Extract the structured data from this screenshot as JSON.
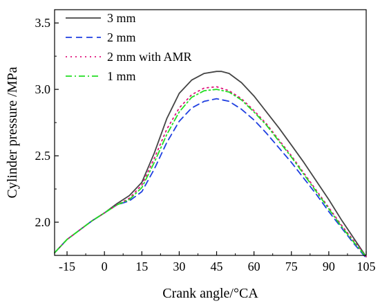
{
  "chart_data": {
    "type": "line",
    "xlabel": "Crank angle/°CA",
    "ylabel": "Cylinder pressure /MPa",
    "xlim": [
      -20,
      105
    ],
    "ylim": [
      1.75,
      3.6
    ],
    "xticks": [
      -15,
      0,
      15,
      30,
      45,
      60,
      75,
      90,
      105
    ],
    "xtick_labels": [
      "-15",
      "0",
      "15",
      "30",
      "45",
      "60",
      "75",
      "90",
      "105"
    ],
    "yticks": [
      2.0,
      2.5,
      3.0,
      3.5
    ],
    "ytick_labels": [
      "2.0",
      "2.5",
      "3.0",
      "3.5"
    ],
    "legend_position": "top-left",
    "grid": false,
    "series": [
      {
        "name": "3 mm",
        "color": "#444444",
        "dash": "solid",
        "x": [
          -20,
          -15,
          -10,
          -5,
          0,
          5,
          10,
          15,
          20,
          25,
          30,
          35,
          40,
          45,
          47,
          50,
          55,
          60,
          65,
          70,
          75,
          80,
          85,
          90,
          95,
          100,
          105
        ],
        "y": [
          1.77,
          1.87,
          1.94,
          2.01,
          2.07,
          2.14,
          2.2,
          2.3,
          2.52,
          2.78,
          2.97,
          3.07,
          3.12,
          3.135,
          3.135,
          3.12,
          3.05,
          2.95,
          2.83,
          2.71,
          2.58,
          2.45,
          2.31,
          2.17,
          2.02,
          1.88,
          1.74
        ]
      },
      {
        "name": "2 mm",
        "color": "#1f3fe0",
        "dash": "dashed",
        "x": [
          -20,
          -15,
          -10,
          -5,
          0,
          5,
          10,
          15,
          20,
          25,
          30,
          35,
          40,
          45,
          50,
          55,
          60,
          65,
          70,
          75,
          80,
          85,
          90,
          95,
          100,
          105
        ],
        "y": [
          1.77,
          1.87,
          1.94,
          2.01,
          2.07,
          2.13,
          2.16,
          2.23,
          2.4,
          2.6,
          2.76,
          2.86,
          2.91,
          2.93,
          2.91,
          2.85,
          2.77,
          2.67,
          2.56,
          2.45,
          2.33,
          2.21,
          2.08,
          1.96,
          1.84,
          1.73
        ]
      },
      {
        "name": "2 mm with AMR",
        "color": "#e0107a",
        "dash": "dotted",
        "x": [
          -20,
          -15,
          -10,
          -5,
          0,
          5,
          10,
          15,
          20,
          25,
          30,
          35,
          40,
          45,
          50,
          55,
          60,
          65,
          70,
          75,
          80,
          85,
          90,
          95,
          100,
          105
        ],
        "y": [
          1.77,
          1.87,
          1.94,
          2.01,
          2.07,
          2.13,
          2.18,
          2.28,
          2.48,
          2.7,
          2.86,
          2.96,
          3.01,
          3.02,
          2.99,
          2.93,
          2.84,
          2.74,
          2.62,
          2.5,
          2.37,
          2.24,
          2.11,
          1.98,
          1.86,
          1.74
        ]
      },
      {
        "name": "1 mm",
        "color": "#22dd22",
        "dash": "dashdot",
        "x": [
          -20,
          -15,
          -10,
          -5,
          0,
          5,
          10,
          15,
          20,
          25,
          30,
          35,
          40,
          45,
          50,
          55,
          60,
          65,
          70,
          75,
          80,
          85,
          90,
          95,
          100,
          105
        ],
        "y": [
          1.77,
          1.87,
          1.94,
          2.01,
          2.07,
          2.13,
          2.17,
          2.26,
          2.45,
          2.66,
          2.83,
          2.94,
          2.99,
          3.0,
          2.98,
          2.92,
          2.83,
          2.73,
          2.61,
          2.49,
          2.36,
          2.23,
          2.1,
          1.97,
          1.85,
          1.74
        ]
      }
    ]
  }
}
